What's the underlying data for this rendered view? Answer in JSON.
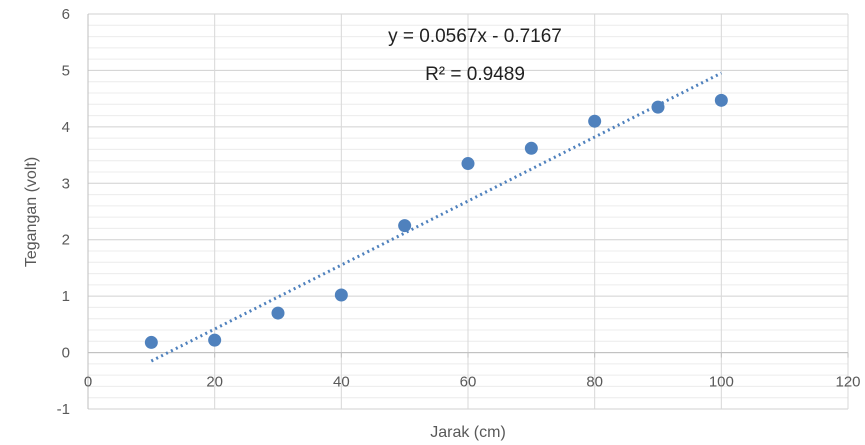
{
  "chart_data": {
    "type": "scatter",
    "xlabel": "Jarak (cm)",
    "ylabel": "Tegangan (volt)",
    "xlim": [
      0,
      120
    ],
    "ylim": [
      -1,
      6
    ],
    "x_ticks": [
      0,
      20,
      40,
      60,
      80,
      100,
      120
    ],
    "y_ticks": [
      -1,
      0,
      1,
      2,
      3,
      4,
      5,
      6
    ],
    "minor_gridlines": true,
    "series": [
      {
        "x": [
          10,
          20,
          30,
          40,
          50,
          60,
          70,
          80,
          90,
          100
        ],
        "y": [
          0.18,
          0.22,
          0.7,
          1.02,
          2.25,
          3.35,
          3.62,
          4.1,
          4.35,
          4.47
        ],
        "color": "#4f81bd"
      }
    ],
    "trendline": {
      "type": "linear",
      "slope": 0.0567,
      "intercept": -0.7167,
      "x_range": [
        10,
        100
      ],
      "style": "dotted",
      "color": "#4f81bd",
      "equation_text": "y = 0.0567x - 0.7167",
      "r2_text": "R² = 0.9489"
    }
  }
}
